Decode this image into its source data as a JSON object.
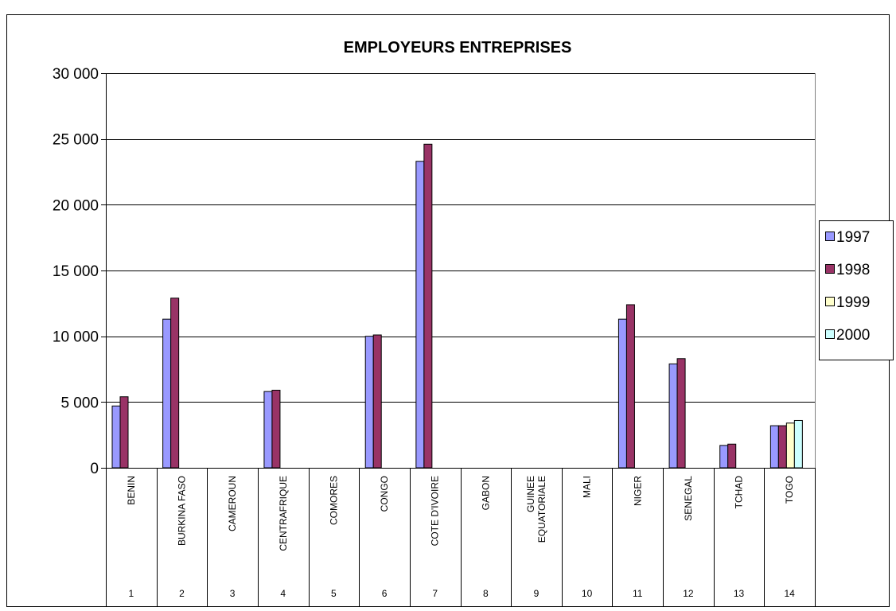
{
  "chart_data": {
    "type": "bar",
    "title": "EMPLOYEURS ENTREPRISES",
    "xlabel": "",
    "ylabel": "",
    "ylim": [
      0,
      30000
    ],
    "yticks": [
      0,
      5000,
      10000,
      15000,
      20000,
      25000,
      30000
    ],
    "ytick_labels": [
      "0",
      "5 000",
      "10 000",
      "15 000",
      "20 000",
      "25 000",
      "30 000"
    ],
    "grid": true,
    "legend_position": "right",
    "categories": [
      "BENIN",
      "BURKINA FASO",
      "CAMEROUN",
      "CENTRAFRIQUE",
      "COMORES",
      "CONGO",
      "COTE D'IVOIRE",
      "GABON",
      "GUINEE EQUATORIALE",
      "MALI",
      "NIGER",
      "SENEGAL",
      "TCHAD",
      "TOGO"
    ],
    "category_numbers": [
      "1",
      "2",
      "3",
      "4",
      "5",
      "6",
      "7",
      "8",
      "9",
      "10",
      "11",
      "12",
      "13",
      "14"
    ],
    "series": [
      {
        "name": "1997",
        "color": "#9999FF",
        "values": [
          4700,
          11300,
          null,
          5800,
          null,
          10000,
          23300,
          null,
          null,
          null,
          11300,
          7900,
          1700,
          3200
        ]
      },
      {
        "name": "1998",
        "color": "#993366",
        "values": [
          5400,
          12900,
          null,
          5900,
          null,
          10100,
          24600,
          null,
          null,
          null,
          12400,
          8300,
          1800,
          3200
        ]
      },
      {
        "name": "1999",
        "color": "#FFFFCC",
        "values": [
          null,
          null,
          null,
          null,
          null,
          null,
          null,
          null,
          null,
          null,
          null,
          null,
          null,
          3400
        ]
      },
      {
        "name": "2000",
        "color": "#CCFFFF",
        "values": [
          null,
          null,
          null,
          null,
          null,
          null,
          null,
          null,
          null,
          null,
          null,
          null,
          null,
          3600
        ]
      }
    ]
  }
}
